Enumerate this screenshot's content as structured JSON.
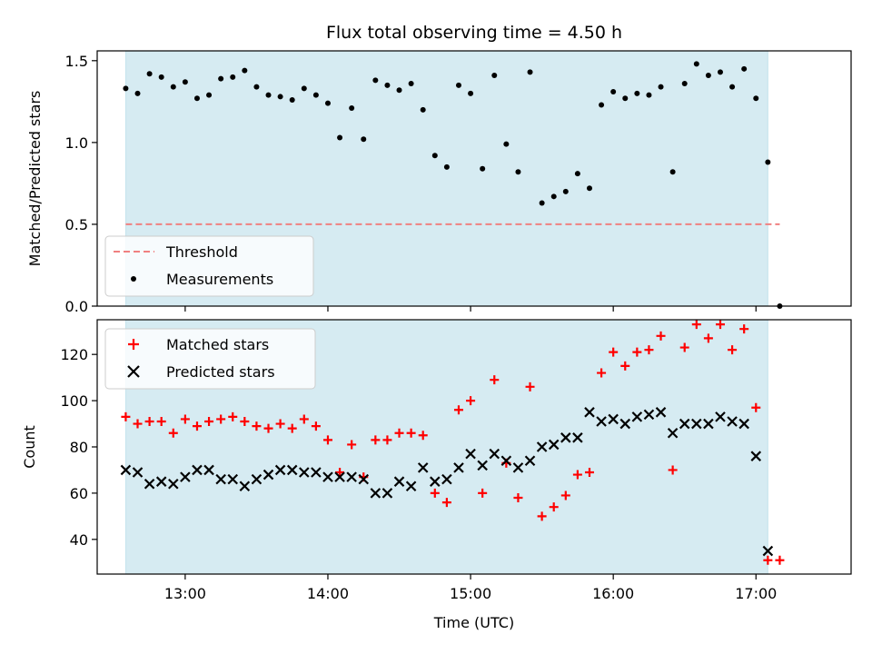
{
  "chart_data": [
    {
      "type": "scatter",
      "title": "Flux total observing time = 4.50 h",
      "xlabel": "",
      "ylabel": "Matched/Predicted stars",
      "xlim": [
        "12:23",
        "17:40"
      ],
      "ylim": [
        0,
        1.56
      ],
      "yticks": [
        0.0,
        0.5,
        1.0,
        1.5
      ],
      "ytick_labels": [
        "0.0",
        "0.5",
        "1.0",
        "1.5"
      ],
      "shaded_span": [
        "12:35",
        "17:05"
      ],
      "shade_color": "#add8e6",
      "threshold": {
        "name": "Threshold",
        "value": 0.5,
        "x_range": [
          "12:35",
          "17:10"
        ],
        "color": "#f08080"
      },
      "legend_position": "lower-left",
      "legend": [
        "Threshold",
        "Measurements"
      ],
      "series": [
        {
          "name": "Measurements",
          "color": "#000000",
          "x": [
            "12:35",
            "12:40",
            "12:45",
            "12:50",
            "12:55",
            "13:00",
            "13:05",
            "13:10",
            "13:15",
            "13:20",
            "13:25",
            "13:30",
            "13:35",
            "13:40",
            "13:45",
            "13:50",
            "13:55",
            "14:00",
            "14:05",
            "14:10",
            "14:15",
            "14:20",
            "14:25",
            "14:30",
            "14:35",
            "14:40",
            "14:45",
            "14:50",
            "14:55",
            "15:00",
            "15:05",
            "15:10",
            "15:15",
            "15:20",
            "15:25",
            "15:30",
            "15:35",
            "15:40",
            "15:45",
            "15:50",
            "15:55",
            "16:00",
            "16:05",
            "16:10",
            "16:15",
            "16:20",
            "16:25",
            "16:30",
            "16:35",
            "16:40",
            "16:45",
            "16:50",
            "16:55",
            "17:00",
            "17:05",
            "17:10"
          ],
          "y": [
            1.33,
            1.3,
            1.42,
            1.4,
            1.34,
            1.37,
            1.27,
            1.29,
            1.39,
            1.4,
            1.44,
            1.34,
            1.29,
            1.28,
            1.26,
            1.33,
            1.29,
            1.24,
            1.03,
            1.21,
            1.02,
            1.38,
            1.35,
            1.32,
            1.36,
            1.2,
            0.92,
            0.85,
            1.35,
            1.3,
            0.84,
            1.41,
            0.99,
            0.82,
            1.43,
            0.63,
            0.67,
            0.7,
            0.81,
            0.72,
            1.23,
            1.31,
            1.27,
            1.3,
            1.29,
            1.34,
            0.82,
            1.36,
            1.48,
            1.41,
            1.43,
            1.34,
            1.45,
            1.27,
            0.88,
            0.0
          ]
        }
      ]
    },
    {
      "type": "scatter",
      "title": "",
      "xlabel": "Time (UTC)",
      "ylabel": "Count",
      "xlim": [
        "12:23",
        "17:40"
      ],
      "ylim": [
        25,
        135
      ],
      "yticks": [
        40,
        60,
        80,
        100,
        120
      ],
      "ytick_labels": [
        "40",
        "60",
        "80",
        "100",
        "120"
      ],
      "xtick_labels": [
        "13:00",
        "14:00",
        "15:00",
        "16:00",
        "17:00"
      ],
      "shaded_span": [
        "12:35",
        "17:05"
      ],
      "shade_color": "#add8e6",
      "legend_position": "upper-left",
      "legend": [
        "Matched stars",
        "Predicted stars"
      ],
      "series": [
        {
          "name": "Matched stars",
          "marker": "plus",
          "color": "#ff0000",
          "x": [
            "12:35",
            "12:40",
            "12:45",
            "12:50",
            "12:55",
            "13:00",
            "13:05",
            "13:10",
            "13:15",
            "13:20",
            "13:25",
            "13:30",
            "13:35",
            "13:40",
            "13:45",
            "13:50",
            "13:55",
            "14:00",
            "14:05",
            "14:10",
            "14:15",
            "14:20",
            "14:25",
            "14:30",
            "14:35",
            "14:40",
            "14:45",
            "14:50",
            "14:55",
            "15:00",
            "15:05",
            "15:10",
            "15:15",
            "15:20",
            "15:25",
            "15:30",
            "15:35",
            "15:40",
            "15:45",
            "15:50",
            "15:55",
            "16:00",
            "16:05",
            "16:10",
            "16:15",
            "16:20",
            "16:25",
            "16:30",
            "16:35",
            "16:40",
            "16:45",
            "16:50",
            "16:55",
            "17:00",
            "17:05",
            "17:10"
          ],
          "y": [
            93,
            90,
            91,
            91,
            86,
            92,
            89,
            91,
            92,
            93,
            91,
            89,
            88,
            90,
            88,
            92,
            89,
            83,
            69,
            81,
            67,
            83,
            83,
            86,
            86,
            85,
            60,
            56,
            96,
            100,
            60,
            109,
            73,
            58,
            106,
            50,
            54,
            59,
            68,
            69,
            112,
            121,
            115,
            121,
            122,
            128,
            70,
            123,
            133,
            127,
            133,
            122,
            131,
            97,
            31,
            31
          ]
        },
        {
          "name": "Predicted stars",
          "marker": "x",
          "color": "#000000",
          "x": [
            "12:35",
            "12:40",
            "12:45",
            "12:50",
            "12:55",
            "13:00",
            "13:05",
            "13:10",
            "13:15",
            "13:20",
            "13:25",
            "13:30",
            "13:35",
            "13:40",
            "13:45",
            "13:50",
            "13:55",
            "14:00",
            "14:05",
            "14:10",
            "14:15",
            "14:20",
            "14:25",
            "14:30",
            "14:35",
            "14:40",
            "14:45",
            "14:50",
            "14:55",
            "15:00",
            "15:05",
            "15:10",
            "15:15",
            "15:20",
            "15:25",
            "15:30",
            "15:35",
            "15:40",
            "15:45",
            "15:50",
            "15:55",
            "16:00",
            "16:05",
            "16:10",
            "16:15",
            "16:20",
            "16:25",
            "16:30",
            "16:35",
            "16:40",
            "16:45",
            "16:50",
            "16:55",
            "17:00",
            "17:05"
          ],
          "y": [
            70,
            69,
            64,
            65,
            64,
            67,
            70,
            70,
            66,
            66,
            63,
            66,
            68,
            70,
            70,
            69,
            69,
            67,
            67,
            67,
            66,
            60,
            60,
            65,
            63,
            71,
            65,
            66,
            71,
            77,
            72,
            77,
            74,
            71,
            74,
            80,
            81,
            84,
            84,
            95,
            91,
            92,
            90,
            93,
            94,
            95,
            86,
            90,
            90,
            90,
            93,
            91,
            90,
            76,
            35
          ]
        }
      ]
    }
  ]
}
